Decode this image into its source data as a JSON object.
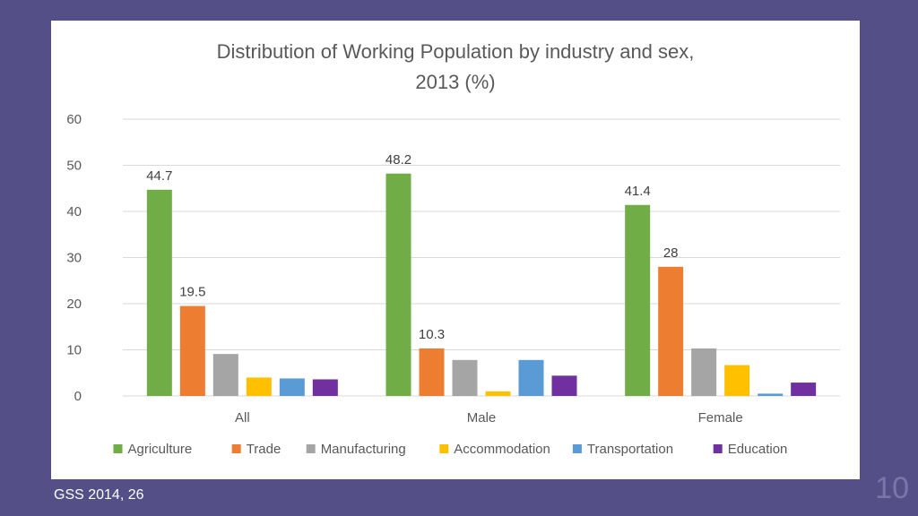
{
  "slide": {
    "source": "GSS 2014, 26",
    "page_number": "10"
  },
  "chart_data": {
    "type": "bar",
    "title_line1": "Distribution of Working Population by industry and sex,",
    "title_line2": "2013 (%)",
    "categories": [
      "All",
      "Male",
      "Female"
    ],
    "ylim": [
      0,
      60
    ],
    "yticks": [
      0,
      10,
      20,
      30,
      40,
      50,
      60
    ],
    "grid": true,
    "legend_position": "bottom",
    "series": [
      {
        "name": "Agriculture",
        "color": "#70ad47",
        "values": [
          44.7,
          48.2,
          41.4
        ],
        "labels": [
          "44.7",
          "48.2",
          "41.4"
        ]
      },
      {
        "name": "Trade",
        "color": "#ed7d31",
        "values": [
          19.5,
          10.3,
          28
        ],
        "labels": [
          "19.5",
          "10.3",
          "28"
        ]
      },
      {
        "name": "Manufacturing",
        "color": "#a5a5a5",
        "values": [
          9.1,
          7.8,
          10.3
        ],
        "labels": [
          "",
          "",
          ""
        ]
      },
      {
        "name": "Accommodation",
        "color": "#ffc000",
        "values": [
          4.0,
          1.0,
          6.7
        ],
        "labels": [
          "",
          "",
          ""
        ]
      },
      {
        "name": "Transportation",
        "color": "#5b9bd5",
        "values": [
          3.8,
          7.8,
          0.5
        ],
        "labels": [
          "",
          "",
          ""
        ]
      },
      {
        "name": "Education",
        "color": "#7030a0",
        "values": [
          3.6,
          4.4,
          2.9
        ],
        "labels": [
          "",
          "",
          ""
        ]
      }
    ]
  }
}
